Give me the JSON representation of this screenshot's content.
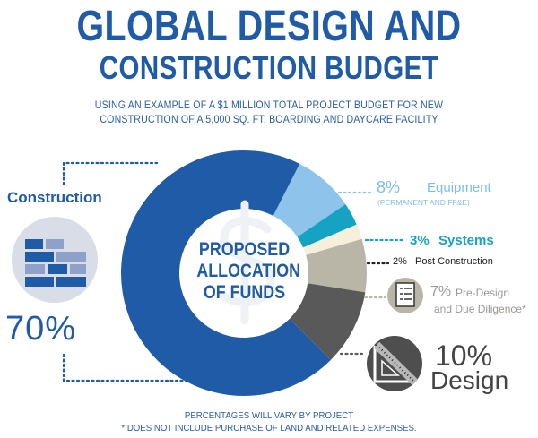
{
  "title_line1": "GLOBAL DESIGN AND",
  "title_line2": "CONSTRUCTION BUDGET",
  "subtitle_line1": "USING AN EXAMPLE OF A $1 MILLION TOTAL PROJECT BUDGET FOR NEW",
  "subtitle_line2": "CONSTRUCTION OF A 5,000 SQ. FT. BOARDING AND DAYCARE FACILITY",
  "center_label": [
    "PROPOSED",
    "ALLOCATION",
    "OF FUNDS"
  ],
  "footnote_line1": "PERCENTAGES WILL VARY BY PROJECT",
  "footnote_line2": "* DOES NOT INCLUDE PURCHASE OF LAND AND RELATED EXPENSES.",
  "labels": {
    "construction": {
      "name": "Construction",
      "pct": "70%"
    },
    "equipment": {
      "pct": "8%",
      "name": "Equipment",
      "note": "(PERMANENT AND FF&E)"
    },
    "systems": {
      "pct": "3%",
      "name": "Systems"
    },
    "post": {
      "pct": "2%",
      "name": "Post Construction"
    },
    "pre": {
      "pct": "7%",
      "name1": "Pre-Design",
      "name2": "and Due Diligence*"
    },
    "design": {
      "pct": "10%",
      "name": "Design"
    }
  },
  "colors": {
    "construction": "#1f5ba6",
    "equipment": "#8ec4ec",
    "systems": "#16a2c2",
    "post": "#f6efdc",
    "pre": "#b9b6a8",
    "design": "#595959"
  },
  "icons": {
    "construction": "bricks-icon",
    "equipment": "none",
    "pre": "checklist-icon",
    "design": "drafting-triangle-icon",
    "center": "dollar-icon"
  },
  "chart_data": {
    "type": "pie",
    "donut": true,
    "title": "GLOBAL DESIGN AND CONSTRUCTION BUDGET",
    "categories": [
      "Equipment",
      "Systems",
      "Post Construction",
      "Pre-Design and Due Diligence",
      "Design",
      "Construction"
    ],
    "values": [
      8,
      3,
      2,
      7,
      10,
      70
    ],
    "unit": "%"
  }
}
